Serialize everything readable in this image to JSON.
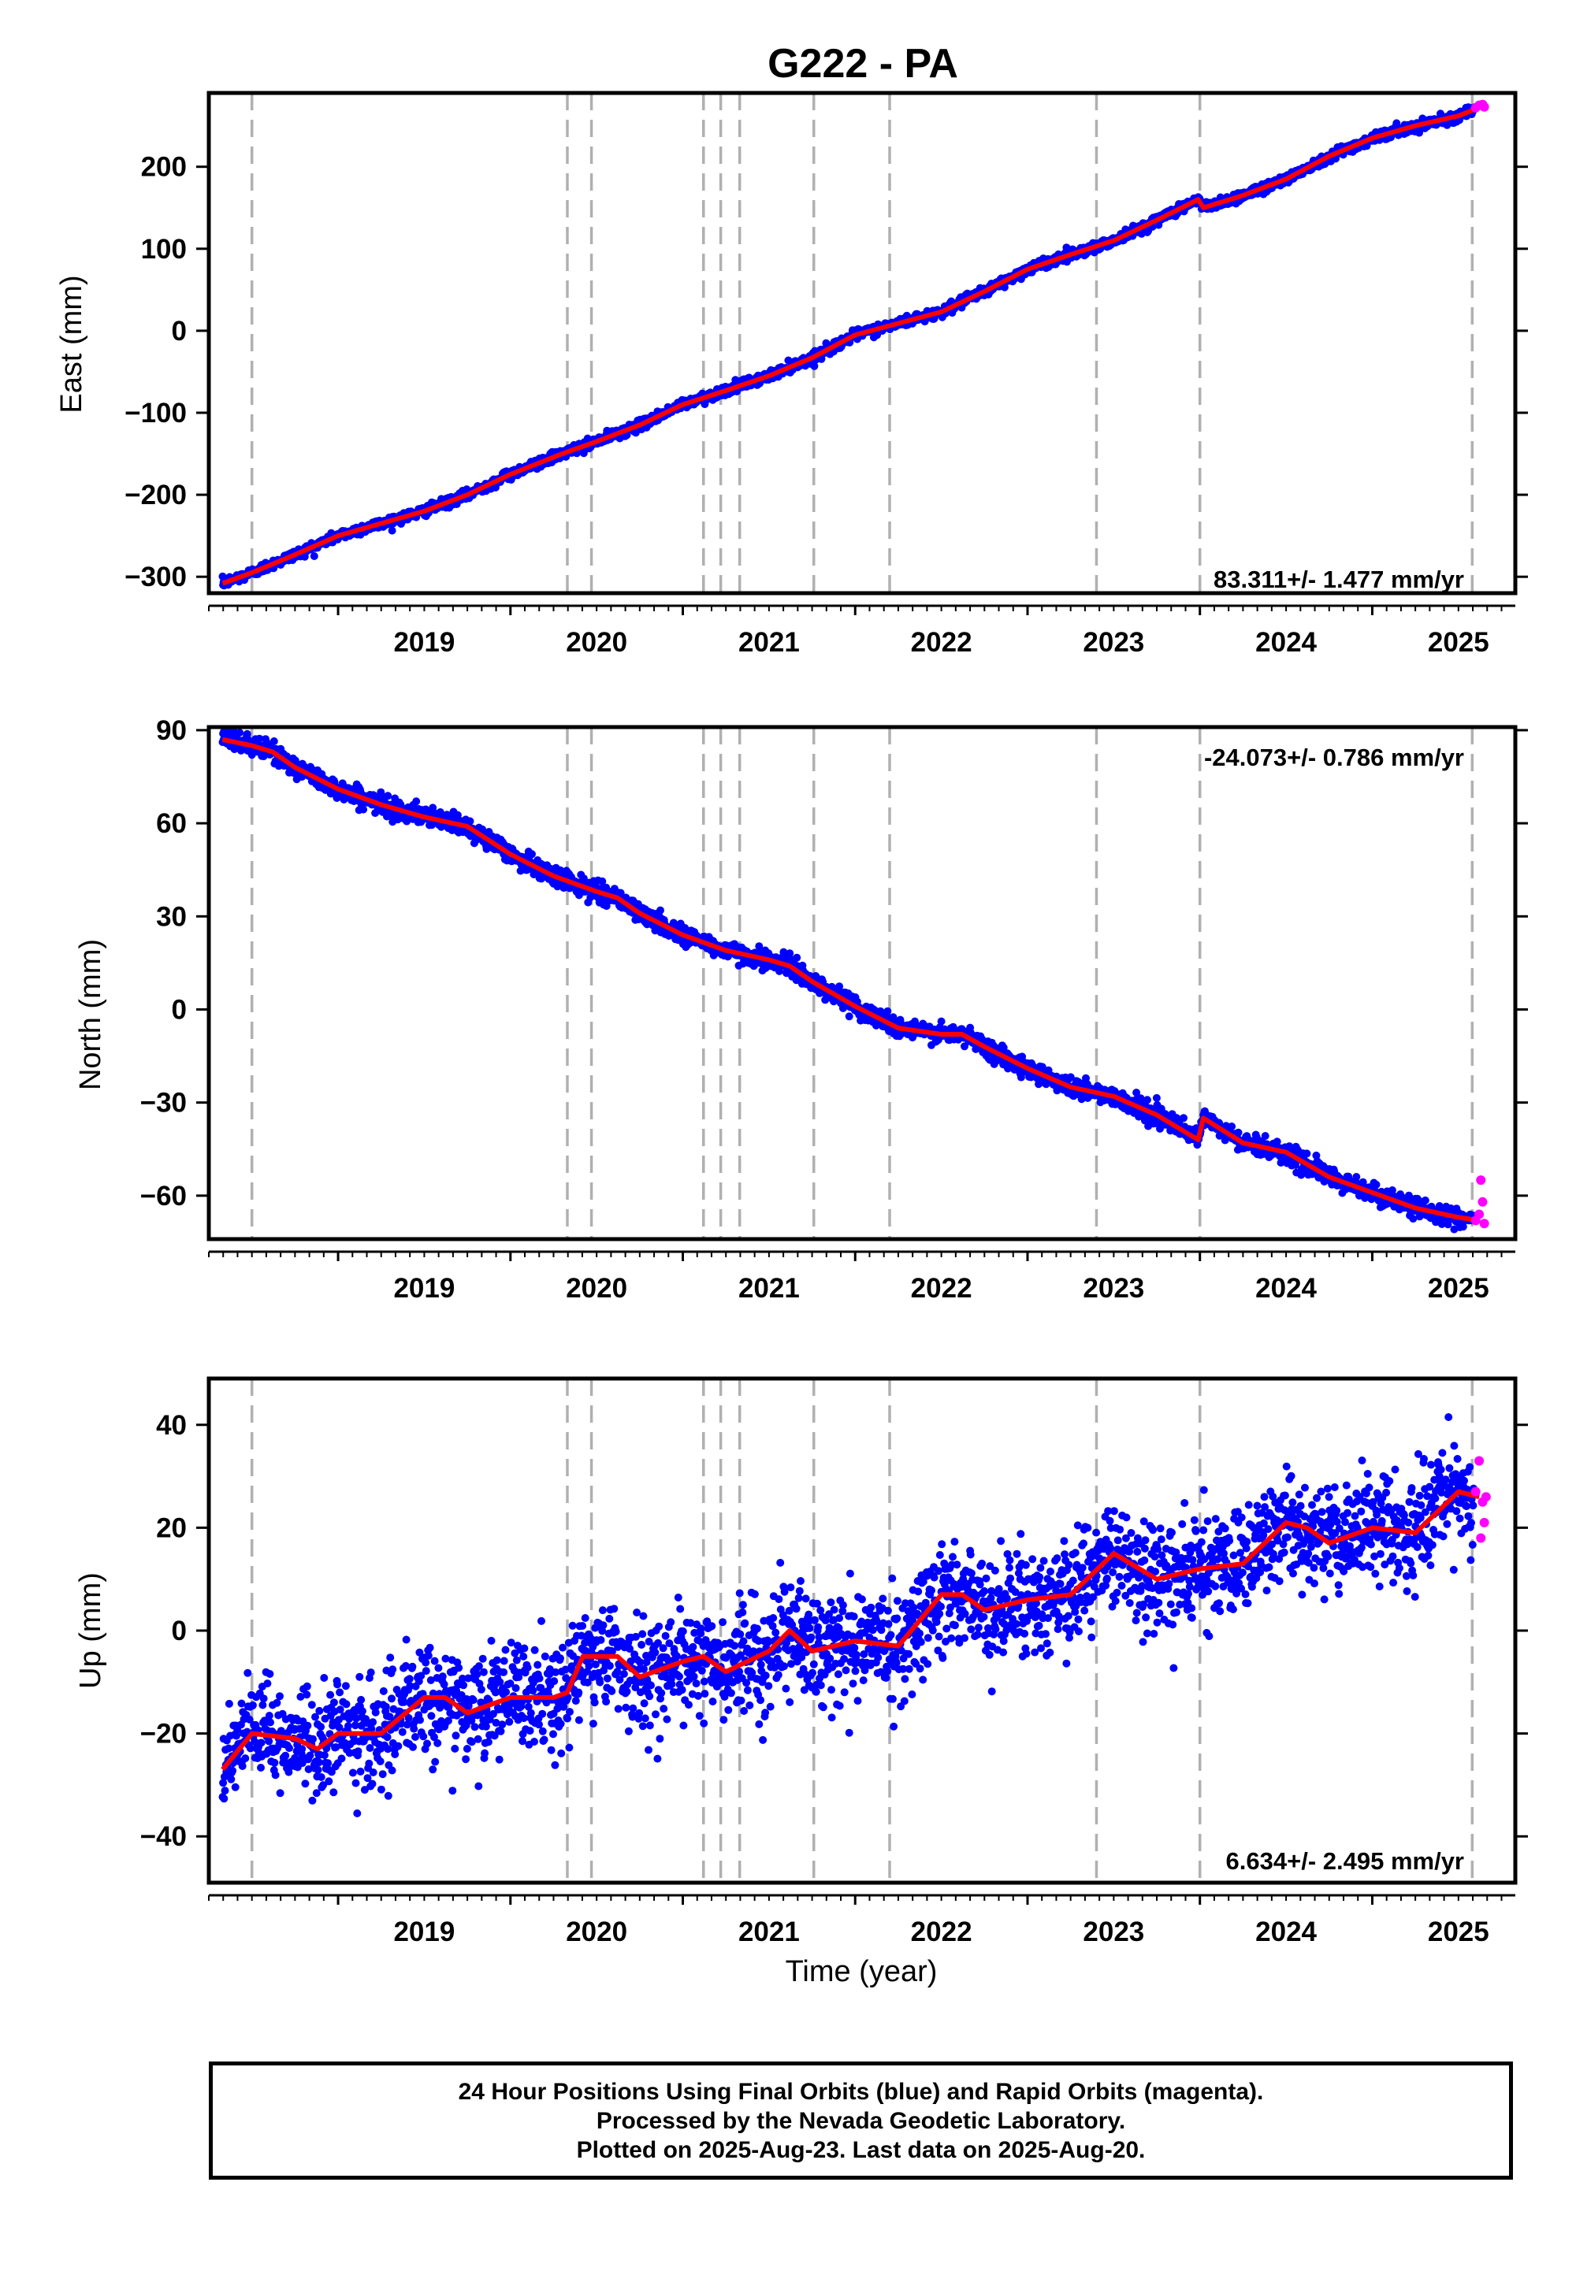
{
  "chart_data": {
    "title": "G222 - PA",
    "type": "scatter",
    "x_unit": "year",
    "x_range": [
      2018.25,
      2025.83
    ],
    "x_ticks": [
      "2019",
      "2020",
      "2021",
      "2022",
      "2023",
      "2024",
      "2025"
    ],
    "x_tick_values": [
      2019,
      2020,
      2021,
      2022,
      2023,
      2024,
      2025
    ],
    "xlabel": "Time (year)",
    "event_lines": [
      2018.5,
      2020.33,
      2020.47,
      2021.12,
      2021.22,
      2021.33,
      2021.76,
      2022.2,
      2023.4,
      2024.0,
      2025.58
    ],
    "colors": {
      "final": "#0000ff",
      "rapid": "#ff00ff",
      "model": "#ff0000",
      "event_line": "#b0b0b0"
    },
    "grid": false,
    "last_data": 2025.63,
    "panels": [
      {
        "name": "east",
        "ylabel": "East (mm)",
        "ylim": [
          -320,
          290
        ],
        "y_ticks": [
          200,
          100,
          0,
          -100,
          -200,
          -300
        ],
        "y_tick_labels": [
          "200",
          "100",
          "0",
          "−100",
          "−200",
          "−300"
        ],
        "rate_text": "83.311+/- 1.477 mm/yr",
        "rate_position": "bottom-right",
        "noise_mm": 3,
        "model_points": [
          [
            2018.33,
            -308
          ],
          [
            2018.5,
            -295
          ],
          [
            2018.75,
            -273
          ],
          [
            2019.0,
            -250
          ],
          [
            2019.5,
            -220
          ],
          [
            2019.75,
            -200
          ],
          [
            2020.0,
            -175
          ],
          [
            2020.3,
            -150
          ],
          [
            2020.5,
            -135
          ],
          [
            2020.75,
            -115
          ],
          [
            2021.0,
            -90
          ],
          [
            2021.25,
            -73
          ],
          [
            2021.5,
            -55
          ],
          [
            2021.75,
            -33
          ],
          [
            2022.0,
            -5
          ],
          [
            2022.5,
            23
          ],
          [
            2022.75,
            48
          ],
          [
            2023.0,
            75
          ],
          [
            2023.25,
            93
          ],
          [
            2023.5,
            110
          ],
          [
            2023.75,
            135
          ],
          [
            2023.99,
            160
          ],
          [
            2024.02,
            150
          ],
          [
            2024.25,
            165
          ],
          [
            2024.5,
            185
          ],
          [
            2024.75,
            213
          ],
          [
            2025.0,
            235
          ],
          [
            2025.25,
            250
          ],
          [
            2025.5,
            262
          ],
          [
            2025.62,
            272
          ]
        ],
        "rapid_points": [
          [
            2025.6,
            272
          ],
          [
            2025.62,
            275
          ],
          [
            2025.64,
            276
          ],
          [
            2025.65,
            273
          ]
        ]
      },
      {
        "name": "north",
        "ylabel": "North (mm)",
        "ylim": [
          -74,
          91
        ],
        "y_ticks": [
          90,
          60,
          30,
          0,
          -30,
          -60
        ],
        "y_tick_labels": [
          "90",
          "60",
          "30",
          "0",
          "−30",
          "−60"
        ],
        "rate_text": "-24.073+/- 0.786 mm/yr",
        "rate_position": "top-right",
        "noise_mm": 1.5,
        "model_points": [
          [
            2018.33,
            87
          ],
          [
            2018.5,
            85
          ],
          [
            2018.62,
            83
          ],
          [
            2018.75,
            78
          ],
          [
            2019.0,
            71
          ],
          [
            2019.25,
            66
          ],
          [
            2019.5,
            62
          ],
          [
            2019.75,
            59
          ],
          [
            2020.0,
            50
          ],
          [
            2020.25,
            43
          ],
          [
            2020.5,
            38
          ],
          [
            2020.62,
            36
          ],
          [
            2020.75,
            31
          ],
          [
            2021.0,
            24
          ],
          [
            2021.25,
            19
          ],
          [
            2021.5,
            16
          ],
          [
            2021.62,
            14
          ],
          [
            2021.75,
            9
          ],
          [
            2022.0,
            1
          ],
          [
            2022.25,
            -6
          ],
          [
            2022.5,
            -8
          ],
          [
            2022.62,
            -8
          ],
          [
            2022.75,
            -12
          ],
          [
            2023.0,
            -19
          ],
          [
            2023.25,
            -25
          ],
          [
            2023.5,
            -28
          ],
          [
            2023.75,
            -34
          ],
          [
            2023.99,
            -42
          ],
          [
            2024.02,
            -35
          ],
          [
            2024.25,
            -43
          ],
          [
            2024.5,
            -46
          ],
          [
            2024.75,
            -54
          ],
          [
            2025.0,
            -59
          ],
          [
            2025.25,
            -64
          ],
          [
            2025.5,
            -67
          ],
          [
            2025.62,
            -68
          ]
        ],
        "rapid_points": [
          [
            2025.6,
            -68
          ],
          [
            2025.62,
            -66
          ],
          [
            2025.63,
            -55
          ],
          [
            2025.64,
            -62
          ],
          [
            2025.65,
            -69
          ]
        ]
      },
      {
        "name": "up",
        "ylabel": "Up (mm)",
        "ylim": [
          -49,
          49
        ],
        "y_ticks": [
          40,
          20,
          0,
          -20,
          -40
        ],
        "y_tick_labels": [
          "40",
          "20",
          "0",
          "−20",
          "−40"
        ],
        "rate_text": "6.634+/- 2.495 mm/yr",
        "rate_position": "bottom-right",
        "noise_mm": 5,
        "model_points": [
          [
            2018.33,
            -27
          ],
          [
            2018.5,
            -20
          ],
          [
            2018.75,
            -21
          ],
          [
            2018.88,
            -23
          ],
          [
            2019.0,
            -20
          ],
          [
            2019.25,
            -20
          ],
          [
            2019.5,
            -13
          ],
          [
            2019.62,
            -13
          ],
          [
            2019.75,
            -16
          ],
          [
            2020.0,
            -13
          ],
          [
            2020.25,
            -13
          ],
          [
            2020.33,
            -12
          ],
          [
            2020.42,
            -5
          ],
          [
            2020.62,
            -5
          ],
          [
            2020.75,
            -9
          ],
          [
            2021.0,
            -6
          ],
          [
            2021.12,
            -5
          ],
          [
            2021.25,
            -8
          ],
          [
            2021.5,
            -4
          ],
          [
            2021.62,
            0
          ],
          [
            2021.75,
            -4
          ],
          [
            2022.0,
            -2
          ],
          [
            2022.25,
            -3
          ],
          [
            2022.5,
            7
          ],
          [
            2022.62,
            7
          ],
          [
            2022.75,
            4
          ],
          [
            2023.0,
            6
          ],
          [
            2023.25,
            7
          ],
          [
            2023.5,
            15
          ],
          [
            2023.75,
            10
          ],
          [
            2024.0,
            12
          ],
          [
            2024.25,
            13
          ],
          [
            2024.5,
            21
          ],
          [
            2024.62,
            20
          ],
          [
            2024.75,
            17
          ],
          [
            2025.0,
            20
          ],
          [
            2025.25,
            19
          ],
          [
            2025.5,
            27
          ],
          [
            2025.62,
            26
          ]
        ],
        "rapid_points": [
          [
            2025.6,
            27
          ],
          [
            2025.62,
            33
          ],
          [
            2025.63,
            18
          ],
          [
            2025.64,
            25
          ],
          [
            2025.65,
            21
          ],
          [
            2025.66,
            26
          ]
        ]
      }
    ]
  },
  "footer": {
    "line1": "24 Hour Positions Using Final Orbits (blue) and Rapid Orbits (magenta).",
    "line2": "Processed by the Nevada Geodetic Laboratory.",
    "line3": "Plotted on 2025-Aug-23. Last data on 2025-Aug-20."
  }
}
